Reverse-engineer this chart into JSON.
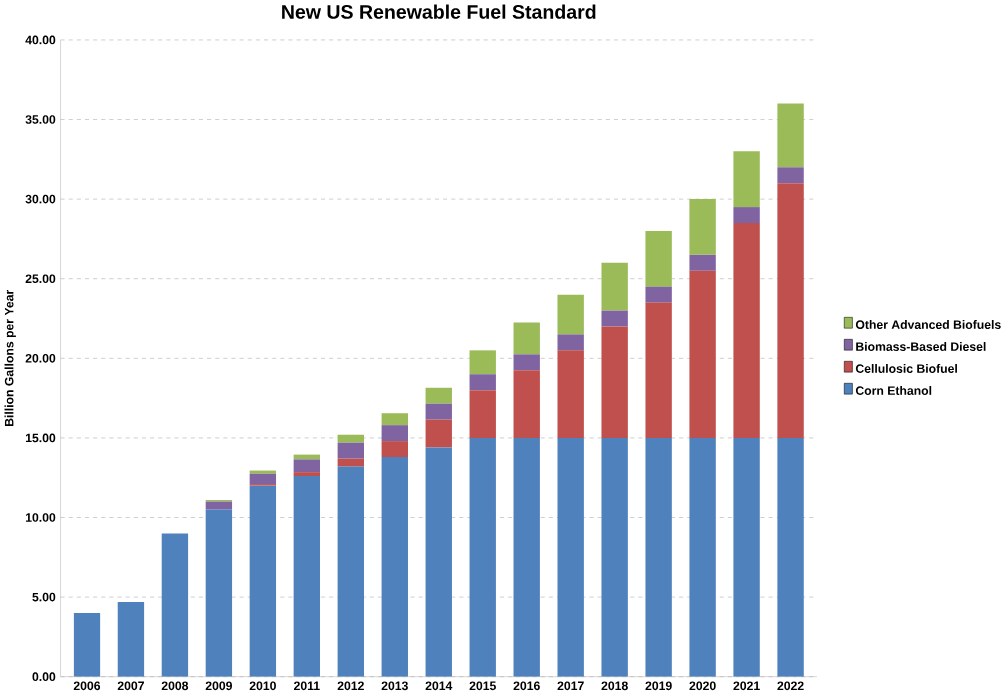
{
  "chart_data": {
    "type": "bar",
    "title": "New US Renewable Fuel Standard",
    "ylabel": "Billion Gallons per Year",
    "stacked": true,
    "categories": [
      "2006",
      "2007",
      "2008",
      "2009",
      "2010",
      "2011",
      "2012",
      "2013",
      "2014",
      "2015",
      "2016",
      "2017",
      "2018",
      "2019",
      "2020",
      "2021",
      "2022"
    ],
    "series": [
      {
        "name": "Corn Ethanol",
        "color": "#4f81bd",
        "values": [
          4.0,
          4.7,
          9.0,
          10.5,
          12.0,
          12.6,
          13.2,
          13.8,
          14.4,
          15.0,
          15.0,
          15.0,
          15.0,
          15.0,
          15.0,
          15.0,
          15.0
        ]
      },
      {
        "name": "Cellulosic Biofuel",
        "color": "#c0504d",
        "values": [
          0,
          0,
          0,
          0,
          0.1,
          0.25,
          0.5,
          1.0,
          1.75,
          3.0,
          4.25,
          5.5,
          7.0,
          8.5,
          10.5,
          13.5,
          16.0
        ]
      },
      {
        "name": "Biomass-Based  Diesel",
        "color": "#8064a2",
        "values": [
          0,
          0,
          0,
          0.5,
          0.65,
          0.8,
          1.0,
          1.0,
          1.0,
          1.0,
          1.0,
          1.0,
          1.0,
          1.0,
          1.0,
          1.0,
          1.0
        ]
      },
      {
        "name": "Other Advanced Biofuels",
        "color": "#9bbb59",
        "values": [
          0,
          0,
          0,
          0.1,
          0.2,
          0.3,
          0.5,
          0.75,
          1.0,
          1.5,
          2.0,
          2.5,
          3.0,
          3.5,
          3.5,
          3.5,
          4.0
        ]
      }
    ],
    "ylim": [
      0,
      40
    ],
    "yticks": [
      {
        "value": 0,
        "label": "0.00"
      },
      {
        "value": 5,
        "label": "5.00"
      },
      {
        "value": 10,
        "label": "10.00"
      },
      {
        "value": 15,
        "label": "15.00"
      },
      {
        "value": 20,
        "label": "20.00"
      },
      {
        "value": 25,
        "label": "25.00"
      },
      {
        "value": 30,
        "label": "30.00"
      },
      {
        "value": 35,
        "label": "35.00"
      },
      {
        "value": 40,
        "label": "40.00"
      }
    ],
    "grid": "y",
    "legend": "right"
  }
}
